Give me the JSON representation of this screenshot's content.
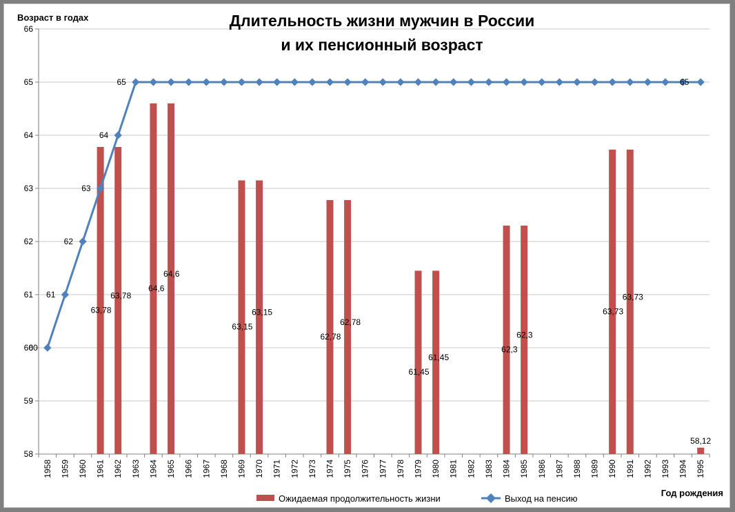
{
  "chart_data": {
    "type": "bar+line",
    "title_lines": [
      "Длительность жизни мужчин в России",
      "и их пенсионный возраст"
    ],
    "ylabel": "Возраст  в годах",
    "xlabel": "Год рождения",
    "ylim": [
      58,
      66
    ],
    "yticks": [
      "58",
      "59",
      "60",
      "61",
      "62",
      "63",
      "64",
      "65",
      "66"
    ],
    "grid": true,
    "legend_position": "bottom",
    "categories": [
      "1958",
      "1959",
      "1960",
      "1961",
      "1962",
      "1963",
      "1964",
      "1965",
      "1966",
      "1967",
      "1968",
      "1969",
      "1970",
      "1971",
      "1972",
      "1973",
      "1974",
      "1975",
      "1976",
      "1977",
      "1978",
      "1979",
      "1980",
      "1981",
      "1982",
      "1983",
      "1984",
      "1985",
      "1986",
      "1987",
      "1988",
      "1989",
      "1990",
      "1991",
      "1992",
      "1993",
      "1994",
      "1995"
    ],
    "series": [
      {
        "name": "Ожидаемая  продолжительность  жизни",
        "kind": "bar",
        "color": "#c0504d",
        "values": [
          null,
          null,
          null,
          63.78,
          63.78,
          null,
          64.6,
          64.6,
          null,
          null,
          null,
          63.15,
          63.15,
          null,
          null,
          null,
          62.78,
          62.78,
          null,
          null,
          null,
          61.45,
          61.45,
          null,
          null,
          null,
          62.3,
          62.3,
          null,
          null,
          null,
          null,
          63.73,
          63.73,
          null,
          null,
          null,
          58.12
        ],
        "labels": [
          null,
          null,
          null,
          "63,78",
          "63,78",
          null,
          "64,6",
          "64,6",
          null,
          null,
          null,
          "63,15",
          "63,15",
          null,
          null,
          null,
          "62,78",
          "62,78",
          null,
          null,
          null,
          "61,45",
          "61,45",
          null,
          null,
          null,
          "62,3",
          "62,3",
          null,
          null,
          null,
          null,
          "63,73",
          "63,73",
          null,
          null,
          null,
          "58,12"
        ]
      },
      {
        "name": "Выход на пенсию",
        "kind": "line",
        "color": "#4f81bd",
        "values": [
          60,
          61,
          62,
          63,
          64,
          65,
          65,
          65,
          65,
          65,
          65,
          65,
          65,
          65,
          65,
          65,
          65,
          65,
          65,
          65,
          65,
          65,
          65,
          65,
          65,
          65,
          65,
          65,
          65,
          65,
          65,
          65,
          65,
          65,
          65,
          65,
          65,
          65
        ],
        "labels": [
          "60",
          "61",
          "62",
          "63",
          "64",
          "65",
          null,
          null,
          null,
          null,
          null,
          null,
          null,
          null,
          null,
          null,
          null,
          null,
          null,
          null,
          null,
          null,
          null,
          null,
          null,
          null,
          null,
          null,
          null,
          null,
          null,
          null,
          null,
          null,
          null,
          null,
          "65",
          null
        ]
      }
    ]
  }
}
